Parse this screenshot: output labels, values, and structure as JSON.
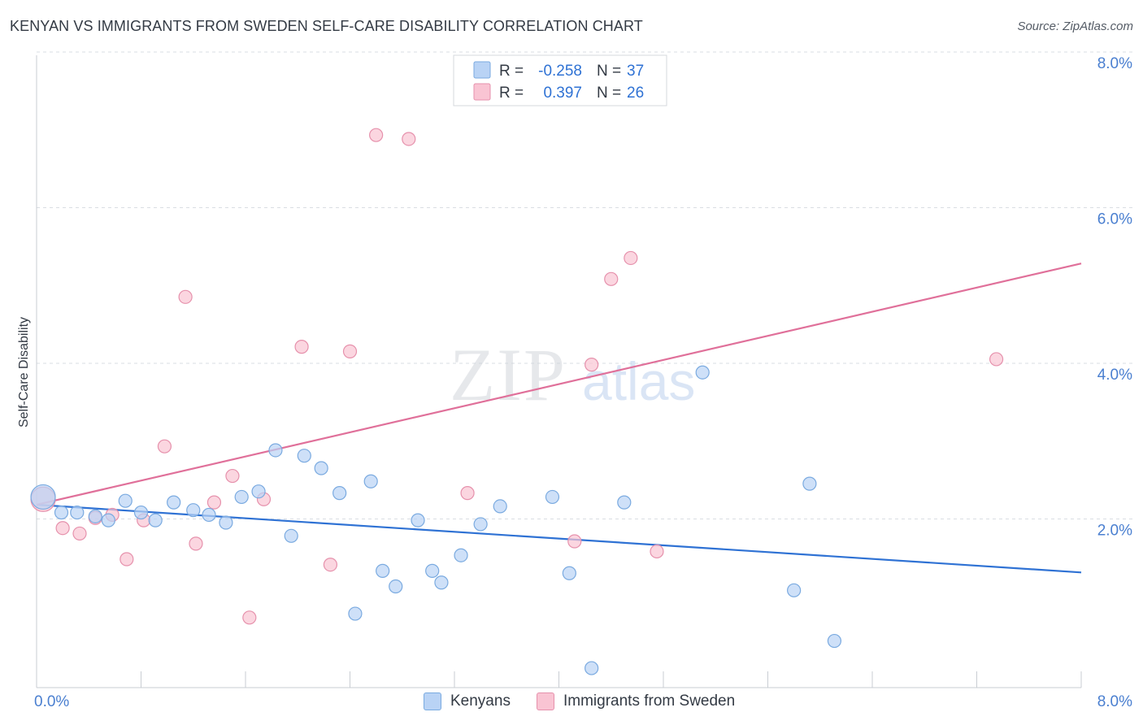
{
  "header": {
    "title": "KENYAN VS IMMIGRANTS FROM SWEDEN SELF-CARE DISABILITY CORRELATION CHART",
    "source": "Source: ZipAtlas.com"
  },
  "watermark": {
    "zip": "ZIP",
    "atlas": "atlas"
  },
  "colors": {
    "kenyans_fill": "#b9d3f5",
    "kenyans_stroke": "#7aaae0",
    "kenyans_line": "#2f72d4",
    "sweden_fill": "#f9c4d3",
    "sweden_stroke": "#e691ac",
    "sweden_line": "#e0709a",
    "axis_text": "#4a7fd0",
    "grid": "#d9dde3"
  },
  "stats_legend": {
    "rows": [
      {
        "r_label": "R =",
        "r_value": "-0.258",
        "n_label": "N =",
        "n_value": "37"
      },
      {
        "r_label": "R =",
        "r_value": "0.397",
        "n_label": "N =",
        "n_value": "26"
      }
    ]
  },
  "chart_data": {
    "type": "scatter",
    "title": "KENYAN VS IMMIGRANTS FROM SWEDEN SELF-CARE DISABILITY CORRELATION CHART",
    "xlabel": "",
    "ylabel": "Self-Care Disability",
    "xlim": [
      0,
      8
    ],
    "ylim": [
      0,
      8
    ],
    "x_tick_labels": [
      "0.0%",
      "8.0%"
    ],
    "y_ticks": [
      2,
      4,
      6,
      8
    ],
    "y_tick_labels": [
      "2.0%",
      "4.0%",
      "6.0%",
      "8.0%"
    ],
    "grid": true,
    "legend_position": "bottom",
    "series": [
      {
        "name": "Kenyans",
        "points": [
          [
            0.05,
            2.45
          ],
          [
            0.19,
            2.25
          ],
          [
            0.31,
            2.25
          ],
          [
            0.45,
            2.2
          ],
          [
            0.55,
            2.15
          ],
          [
            0.68,
            2.4
          ],
          [
            0.8,
            2.25
          ],
          [
            0.91,
            2.15
          ],
          [
            1.05,
            2.38
          ],
          [
            1.2,
            2.28
          ],
          [
            1.32,
            2.22
          ],
          [
            1.45,
            2.12
          ],
          [
            1.57,
            2.45
          ],
          [
            1.7,
            2.52
          ],
          [
            1.83,
            3.05
          ],
          [
            1.95,
            1.95
          ],
          [
            2.05,
            2.98
          ],
          [
            2.18,
            2.82
          ],
          [
            2.32,
            2.5
          ],
          [
            2.44,
            0.95
          ],
          [
            2.56,
            2.65
          ],
          [
            2.65,
            1.5
          ],
          [
            2.75,
            1.3
          ],
          [
            2.92,
            2.15
          ],
          [
            3.03,
            1.5
          ],
          [
            3.1,
            1.35
          ],
          [
            3.25,
            1.7
          ],
          [
            3.4,
            2.1
          ],
          [
            3.55,
            2.33
          ],
          [
            3.95,
            2.45
          ],
          [
            4.08,
            1.47
          ],
          [
            4.25,
            0.25
          ],
          [
            4.5,
            2.38
          ],
          [
            5.1,
            4.05
          ],
          [
            5.8,
            1.25
          ],
          [
            5.92,
            2.62
          ],
          [
            6.11,
            0.6
          ]
        ],
        "trend": {
          "x": [
            0,
            8
          ],
          "y": [
            2.35,
            1.48
          ]
        }
      },
      {
        "name": "Immigrants from Sweden",
        "points": [
          [
            0.05,
            2.42
          ],
          [
            0.2,
            2.05
          ],
          [
            0.33,
            1.98
          ],
          [
            0.45,
            2.18
          ],
          [
            0.58,
            2.22
          ],
          [
            0.69,
            1.65
          ],
          [
            0.82,
            2.15
          ],
          [
            0.98,
            3.1
          ],
          [
            1.14,
            5.02
          ],
          [
            1.22,
            1.85
          ],
          [
            1.36,
            2.38
          ],
          [
            1.5,
            2.72
          ],
          [
            1.63,
            0.9
          ],
          [
            1.74,
            2.42
          ],
          [
            2.03,
            4.38
          ],
          [
            2.25,
            1.58
          ],
          [
            2.4,
            4.32
          ],
          [
            2.6,
            7.1
          ],
          [
            2.85,
            7.05
          ],
          [
            3.3,
            2.5
          ],
          [
            4.12,
            1.88
          ],
          [
            4.25,
            4.15
          ],
          [
            4.4,
            5.25
          ],
          [
            4.55,
            5.52
          ],
          [
            4.75,
            1.75
          ],
          [
            7.35,
            4.22
          ]
        ],
        "trend": {
          "x": [
            0,
            8
          ],
          "y": [
            2.35,
            5.45
          ]
        }
      }
    ]
  }
}
